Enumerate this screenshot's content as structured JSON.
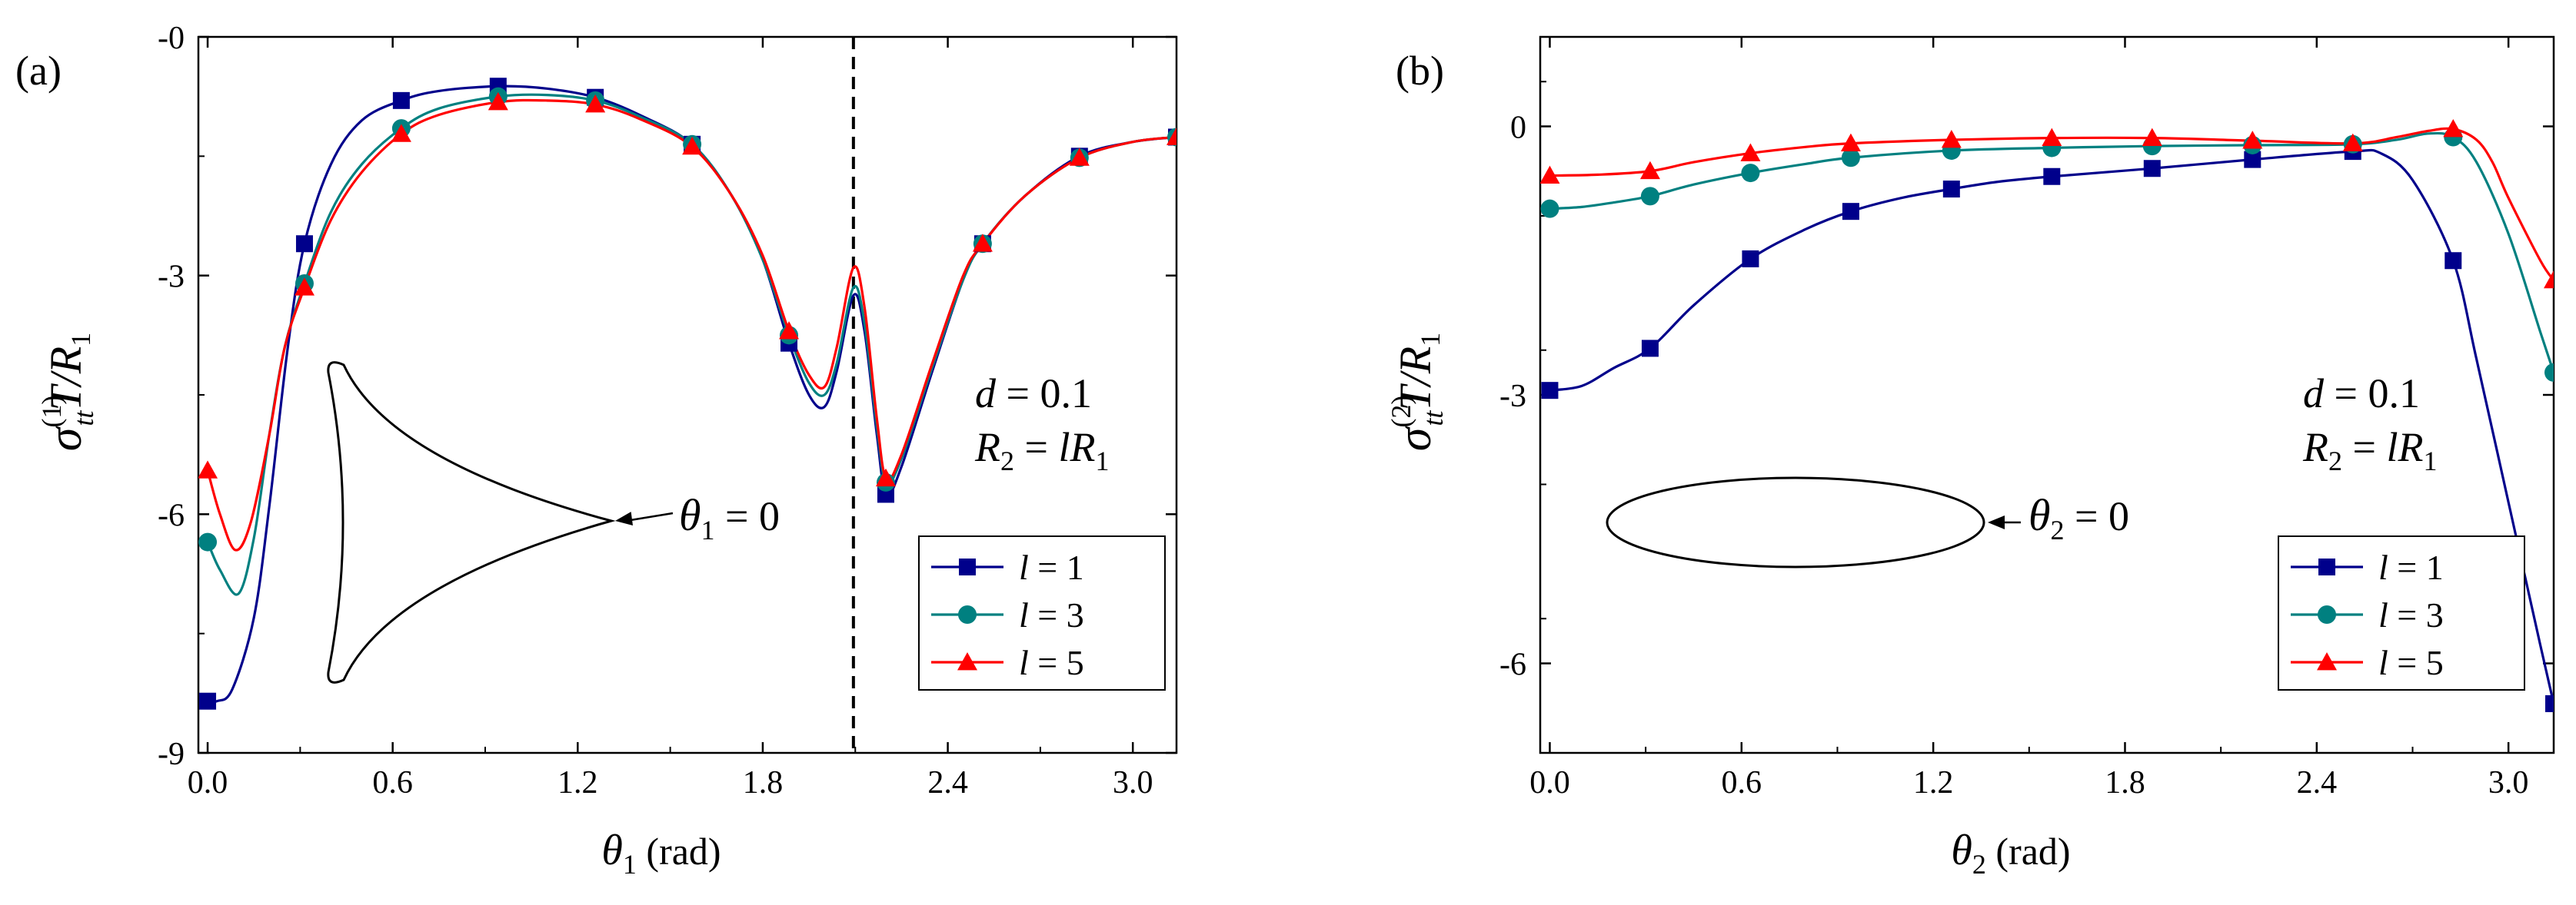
{
  "chart_data": [
    {
      "type": "line",
      "panel_label": "(a)",
      "xlabel": {
        "sym": "θ",
        "sub": "1",
        "unit": "(rad)"
      },
      "ylabel": {
        "sym": "σ",
        "sub": "tt",
        "sup": "(1)",
        "tail": "T/R",
        "tail_sub": "1"
      },
      "xlim": [
        -0.03,
        3.1416
      ],
      "ylim": [
        -9,
        0
      ],
      "xticks": [
        0.0,
        0.6,
        1.2,
        1.8,
        2.4,
        3.0
      ],
      "xtick_labels": [
        "0.0",
        "0.6",
        "1.2",
        "1.8",
        "2.4",
        "3.0"
      ],
      "yticks": [
        -9,
        -6,
        -3,
        0
      ],
      "ytick_labels": [
        "-9",
        "-6",
        "-3",
        "-0"
      ],
      "vline_x": 2.094,
      "annotation": {
        "d_line": "d = 0.1",
        "r_left": "R",
        "r_left_sub": "2",
        "r_mid": " = lR",
        "r_mid_sub": "1",
        "theta_sym": "θ",
        "theta_sub": "1",
        "theta_tail": " = 0"
      },
      "legend": [
        "l = 1",
        "l = 3",
        "l = 5"
      ],
      "series": [
        {
          "name": "l = 1",
          "color": "#00008B",
          "marker": "square",
          "x": [
            0.0,
            0.03,
            0.08,
            0.15,
            0.2,
            0.26,
            0.314,
            0.4,
            0.5,
            0.628,
            0.75,
            0.942,
            1.1,
            1.257,
            1.4,
            1.571,
            1.7,
            1.8,
            1.885,
            1.95,
            2.0,
            2.04,
            2.094,
            2.13,
            2.17,
            2.2,
            2.25,
            2.35,
            2.45,
            2.513,
            2.65,
            2.827,
            3.0,
            3.1416
          ],
          "y": [
            -8.35,
            -8.35,
            -8.2,
            -7.3,
            -5.9,
            -3.9,
            -2.6,
            -1.6,
            -1.05,
            -0.8,
            -0.68,
            -0.62,
            -0.65,
            -0.76,
            -0.98,
            -1.35,
            -2.0,
            -2.8,
            -3.85,
            -4.5,
            -4.65,
            -4.2,
            -3.25,
            -3.7,
            -5.0,
            -5.75,
            -5.4,
            -4.2,
            -3.05,
            -2.6,
            -2.0,
            -1.5,
            -1.32,
            -1.26
          ],
          "marker_x": [
            0.0,
            0.314,
            0.628,
            0.942,
            1.257,
            1.571,
            1.885,
            2.199,
            2.513,
            2.827,
            3.1416
          ],
          "marker_y": [
            -8.35,
            -2.6,
            -0.8,
            -0.62,
            -0.76,
            -1.35,
            -3.85,
            -5.75,
            -2.6,
            -1.5,
            -1.26
          ]
        },
        {
          "name": "l = 3",
          "color": "#008080",
          "marker": "circle",
          "x": [
            0.0,
            0.04,
            0.1,
            0.15,
            0.2,
            0.25,
            0.314,
            0.4,
            0.5,
            0.628,
            0.75,
            0.942,
            1.1,
            1.257,
            1.4,
            1.571,
            1.7,
            1.8,
            1.885,
            1.95,
            2.0,
            2.04,
            2.094,
            2.13,
            2.17,
            2.2,
            2.25,
            2.35,
            2.45,
            2.513,
            2.65,
            2.827,
            3.0,
            3.1416
          ],
          "y": [
            -6.35,
            -6.7,
            -7.0,
            -6.3,
            -5.0,
            -3.9,
            -3.1,
            -2.2,
            -1.6,
            -1.15,
            -0.9,
            -0.75,
            -0.73,
            -0.8,
            -1.0,
            -1.35,
            -2.0,
            -2.8,
            -3.75,
            -4.35,
            -4.5,
            -4.1,
            -3.15,
            -3.6,
            -4.9,
            -5.6,
            -5.3,
            -4.15,
            -3.05,
            -2.6,
            -2.0,
            -1.52,
            -1.32,
            -1.26
          ],
          "marker_x": [
            0.0,
            0.314,
            0.628,
            0.942,
            1.257,
            1.571,
            1.885,
            2.199,
            2.513,
            2.827,
            3.1416
          ],
          "marker_y": [
            -6.35,
            -3.1,
            -1.15,
            -0.75,
            -0.8,
            -1.35,
            -3.75,
            -5.6,
            -2.6,
            -1.52,
            -1.26
          ]
        },
        {
          "name": "l = 5",
          "color": "#FF0000",
          "marker": "triangle",
          "x": [
            0.0,
            0.04,
            0.09,
            0.14,
            0.2,
            0.25,
            0.314,
            0.4,
            0.5,
            0.628,
            0.75,
            0.942,
            1.1,
            1.257,
            1.4,
            1.571,
            1.7,
            1.8,
            1.885,
            1.95,
            2.0,
            2.04,
            2.094,
            2.13,
            2.17,
            2.2,
            2.25,
            2.35,
            2.45,
            2.513,
            2.65,
            2.827,
            3.0,
            3.1416
          ],
          "y": [
            -5.45,
            -6.0,
            -6.45,
            -6.1,
            -5.0,
            -3.9,
            -3.15,
            -2.3,
            -1.7,
            -1.22,
            -0.98,
            -0.82,
            -0.8,
            -0.85,
            -1.03,
            -1.38,
            -2.0,
            -2.75,
            -3.7,
            -4.25,
            -4.4,
            -3.9,
            -2.9,
            -3.4,
            -4.8,
            -5.55,
            -5.25,
            -4.1,
            -3.0,
            -2.6,
            -2.0,
            -1.52,
            -1.32,
            -1.26
          ],
          "marker_x": [
            0.0,
            0.314,
            0.628,
            0.942,
            1.257,
            1.571,
            1.885,
            2.199,
            2.513,
            2.827,
            3.1416
          ],
          "marker_y": [
            -5.45,
            -3.15,
            -1.22,
            -0.82,
            -0.85,
            -1.38,
            -3.7,
            -5.55,
            -2.6,
            -1.52,
            -1.26
          ]
        }
      ]
    },
    {
      "type": "line",
      "panel_label": "(b)",
      "xlabel": {
        "sym": "θ",
        "sub": "2",
        "unit": "(rad)"
      },
      "ylabel": {
        "sym": "σ",
        "sub": "tt",
        "sup": "(2)",
        "tail": "T/R",
        "tail_sub": "1"
      },
      "xlim": [
        -0.03,
        3.1416
      ],
      "ylim": [
        -7,
        1
      ],
      "xticks": [
        0.0,
        0.6,
        1.2,
        1.8,
        2.4,
        3.0
      ],
      "xtick_labels": [
        "0.0",
        "0.6",
        "1.2",
        "1.8",
        "2.4",
        "3.0"
      ],
      "yticks": [
        -6,
        -3,
        0
      ],
      "ytick_labels": [
        "-6",
        "-3",
        "0"
      ],
      "annotation": {
        "d_line": "d = 0.1",
        "r_left": "R",
        "r_left_sub": "2",
        "r_mid": " = lR",
        "r_mid_sub": "1",
        "theta_sym": "θ",
        "theta_sub": "2",
        "theta_tail": " = 0"
      },
      "legend": [
        "l = 1",
        "l = 3",
        "l = 5"
      ],
      "series": [
        {
          "name": "l = 1",
          "color": "#00008B",
          "marker": "square",
          "x": [
            0.0,
            0.1,
            0.2,
            0.314,
            0.45,
            0.628,
            0.8,
            0.942,
            1.1,
            1.257,
            1.4,
            1.571,
            1.885,
            2.199,
            2.513,
            2.6,
            2.7,
            2.827,
            2.9,
            3.0,
            3.1,
            3.1416
          ],
          "y": [
            -2.95,
            -2.9,
            -2.7,
            -2.48,
            -2.0,
            -1.48,
            -1.15,
            -0.95,
            -0.8,
            -0.7,
            -0.62,
            -0.56,
            -0.47,
            -0.37,
            -0.28,
            -0.3,
            -0.6,
            -1.5,
            -2.6,
            -4.2,
            -5.8,
            -6.45
          ],
          "marker_x": [
            0.0,
            0.314,
            0.628,
            0.942,
            1.257,
            1.571,
            1.885,
            2.199,
            2.513,
            2.827,
            3.1416
          ],
          "marker_y": [
            -2.95,
            -2.48,
            -1.48,
            -0.95,
            -0.7,
            -0.56,
            -0.47,
            -0.37,
            -0.28,
            -1.5,
            -6.45
          ]
        },
        {
          "name": "l = 3",
          "color": "#008080",
          "marker": "circle",
          "x": [
            0.0,
            0.1,
            0.2,
            0.314,
            0.45,
            0.628,
            0.8,
            0.942,
            1.257,
            1.571,
            1.885,
            2.199,
            2.513,
            2.65,
            2.75,
            2.827,
            2.9,
            3.0,
            3.1,
            3.1416
          ],
          "y": [
            -0.92,
            -0.9,
            -0.85,
            -0.78,
            -0.65,
            -0.52,
            -0.42,
            -0.35,
            -0.27,
            -0.24,
            -0.22,
            -0.21,
            -0.2,
            -0.15,
            -0.08,
            -0.12,
            -0.4,
            -1.2,
            -2.3,
            -2.75
          ],
          "marker_x": [
            0.0,
            0.314,
            0.628,
            0.942,
            1.257,
            1.571,
            1.885,
            2.199,
            2.513,
            2.827,
            3.1416
          ],
          "marker_y": [
            -0.92,
            -0.78,
            -0.52,
            -0.35,
            -0.27,
            -0.24,
            -0.22,
            -0.21,
            -0.2,
            -0.12,
            -2.75
          ]
        },
        {
          "name": "l = 5",
          "color": "#FF0000",
          "marker": "triangle",
          "x": [
            0.0,
            0.15,
            0.314,
            0.45,
            0.628,
            0.8,
            0.942,
            1.257,
            1.571,
            1.885,
            2.199,
            2.513,
            2.65,
            2.75,
            2.827,
            2.9,
            2.95,
            3.0,
            3.1,
            3.1416
          ],
          "y": [
            -0.55,
            -0.54,
            -0.5,
            -0.4,
            -0.3,
            -0.23,
            -0.19,
            -0.15,
            -0.13,
            -0.13,
            -0.16,
            -0.19,
            -0.12,
            -0.05,
            -0.03,
            -0.15,
            -0.4,
            -0.8,
            -1.5,
            -1.72
          ],
          "marker_x": [
            0.0,
            0.314,
            0.628,
            0.942,
            1.257,
            1.571,
            1.885,
            2.199,
            2.513,
            2.827,
            3.1416
          ],
          "marker_y": [
            -0.55,
            -0.5,
            -0.3,
            -0.19,
            -0.15,
            -0.13,
            -0.13,
            -0.16,
            -0.19,
            -0.03,
            -1.72
          ]
        }
      ]
    }
  ]
}
